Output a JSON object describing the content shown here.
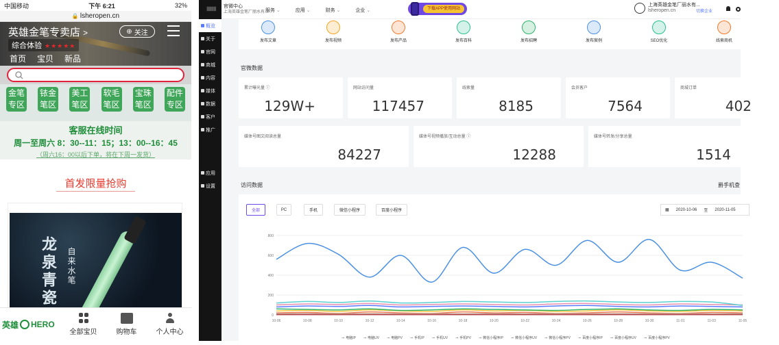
{
  "phone": {
    "status": {
      "carrier": "中国移动",
      "time": "下午 6:21",
      "battery": "32%"
    },
    "url": "lsheropen.cn",
    "shop_name": "英雄金笔专卖店",
    "rating_label": "综合体验",
    "rating_stars": "★★★★★",
    "follow_label": "关注",
    "nav": [
      "首页",
      "宝贝",
      "新品"
    ],
    "categories": [
      [
        "金笔",
        "专区"
      ],
      [
        "铱金",
        "笔区"
      ],
      [
        "美工",
        "笔区"
      ],
      [
        "软毛",
        "笔区"
      ],
      [
        "宝珠",
        "笔区"
      ],
      [
        "配件",
        "专区"
      ]
    ],
    "service_title": "客服在线时间",
    "service_hours": "周一至周六 8：30--11：15；13：00--16：45",
    "service_note": "（周六16：00以后下单，将在下周一发货）",
    "promo_title": "首发限量抢购",
    "promo_big": "龙泉青瓷",
    "promo_small": "自来水笔",
    "tab_brand": "英雄",
    "tab_brand2": "HERO",
    "tabs": [
      "全部宝贝",
      "购物车",
      "个人中心"
    ]
  },
  "sidebar": [
    "概览",
    "关于",
    "官网",
    "商城",
    "内容",
    "媒体",
    "数据",
    "客户",
    "推广",
    "应用",
    "设置"
  ],
  "topbar": {
    "title": "官微中心",
    "subtitle": "上海英雄金笔厂丽水有...",
    "menu": [
      "服务",
      "应用",
      "财务",
      "企业"
    ],
    "app_text": "下载APP使用网站",
    "org_name": "上海英雄金笔厂丽水有...",
    "org_domain": "lsheropen.cn",
    "switch_label": "切换企业"
  },
  "tools": [
    "发布文章",
    "发布视频",
    "发布产品",
    "发布百科",
    "发布招聘",
    "发布案例",
    "SEO优化",
    "线索商机"
  ],
  "tool_colors": [
    "#4a90e2",
    "#f5a623",
    "#f07b2c",
    "#27c08f",
    "#2fb36b",
    "#4a90e2",
    "#27c08f",
    "#f07b2c"
  ],
  "section_official": "官微数据",
  "stats_row1": [
    {
      "label": "累计曝光量 ⓘ",
      "value": "129W+"
    },
    {
      "label": "网站访问量",
      "value": "117457"
    },
    {
      "label": "线索量",
      "value": "8185"
    },
    {
      "label": "会员客户",
      "value": "7564"
    },
    {
      "label": "商城订单",
      "value": "402"
    }
  ],
  "stats_row2": [
    {
      "label": "媒体号图文阅读总量",
      "value": "84227"
    },
    {
      "label": "媒体号视频播放/互动总量 ⓘ",
      "value": "12288"
    },
    {
      "label": "媒体号转发/分享总量",
      "value": "1514"
    }
  ],
  "section_visits": "访问数据",
  "section_right": "爵手机查",
  "filters": [
    "全部",
    "PC",
    "手机",
    "微信小程序",
    "百度小程序"
  ],
  "date_from": "2020-10-06",
  "date_to": "2020-11-05",
  "date_sep": "至",
  "chart_data": {
    "type": "line",
    "x": [
      "10-06",
      "10-08",
      "10-10",
      "10-12",
      "10-14",
      "10-16",
      "10-18",
      "10-20",
      "10-22",
      "10-24",
      "10-26",
      "10-28",
      "10-30",
      "11-01",
      "11-03",
      "11-05"
    ],
    "ylim": [
      0,
      800
    ],
    "yticks": [
      0,
      200,
      400,
      600,
      800
    ],
    "series": [
      {
        "name": "电脑IP",
        "color": "#e8785a",
        "values": [
          20,
          25,
          15,
          30,
          20,
          15,
          30,
          20,
          25,
          15,
          20,
          30,
          20,
          15,
          25,
          20
        ]
      },
      {
        "name": "电脑UV",
        "color": "#f5c542",
        "values": [
          40,
          45,
          35,
          50,
          40,
          35,
          50,
          40,
          45,
          35,
          40,
          50,
          40,
          35,
          45,
          40
        ]
      },
      {
        "name": "电脑PV",
        "color": "#2fb36b",
        "values": [
          60,
          55,
          50,
          60,
          45,
          50,
          60,
          55,
          50,
          45,
          55,
          60,
          50,
          45,
          55,
          50
        ]
      },
      {
        "name": "手机IP",
        "color": "#5a7bff",
        "values": [
          80,
          90,
          85,
          95,
          80,
          85,
          90,
          85,
          80,
          90,
          95,
          85,
          80,
          90,
          85,
          80
        ]
      },
      {
        "name": "手机UV",
        "color": "#e88fb0",
        "values": [
          100,
          110,
          105,
          115,
          100,
          105,
          110,
          105,
          100,
          110,
          115,
          105,
          100,
          110,
          105,
          100
        ]
      },
      {
        "name": "手机PV",
        "color": "#5ad0d0",
        "values": [
          120,
          135,
          125,
          140,
          120,
          125,
          135,
          130,
          125,
          135,
          140,
          130,
          125,
          135,
          130,
          95
        ]
      },
      {
        "name": "微信小程序IP",
        "color": "#f0a050",
        "values": [
          10,
          12,
          10,
          12,
          10,
          12,
          10,
          12,
          10,
          12,
          10,
          12,
          10,
          12,
          10,
          12
        ]
      },
      {
        "name": "微信小程序UV",
        "color": "#b0d050",
        "values": [
          8,
          9,
          8,
          9,
          8,
          9,
          8,
          9,
          8,
          9,
          8,
          9,
          8,
          9,
          8,
          9
        ]
      },
      {
        "name": "微信小程序PV",
        "color": "#d070d0",
        "values": [
          6,
          7,
          6,
          7,
          6,
          7,
          6,
          7,
          6,
          7,
          6,
          7,
          6,
          7,
          6,
          7
        ]
      },
      {
        "name": "百度小程序IP",
        "color": "#70a0e0",
        "values": [
          4,
          5,
          4,
          5,
          4,
          5,
          4,
          5,
          4,
          5,
          4,
          5,
          4,
          5,
          4,
          5
        ]
      },
      {
        "name": "百度小程序UV",
        "color": "#c04040",
        "values": [
          3,
          3,
          3,
          3,
          3,
          3,
          3,
          3,
          3,
          3,
          3,
          3,
          3,
          3,
          3,
          3
        ]
      },
      {
        "name": "百度小程序PV",
        "color": "#4a90e2",
        "values": [
          560,
          720,
          610,
          380,
          600,
          330,
          680,
          420,
          660,
          500,
          750,
          530,
          760,
          450,
          530,
          370
        ]
      }
    ]
  }
}
